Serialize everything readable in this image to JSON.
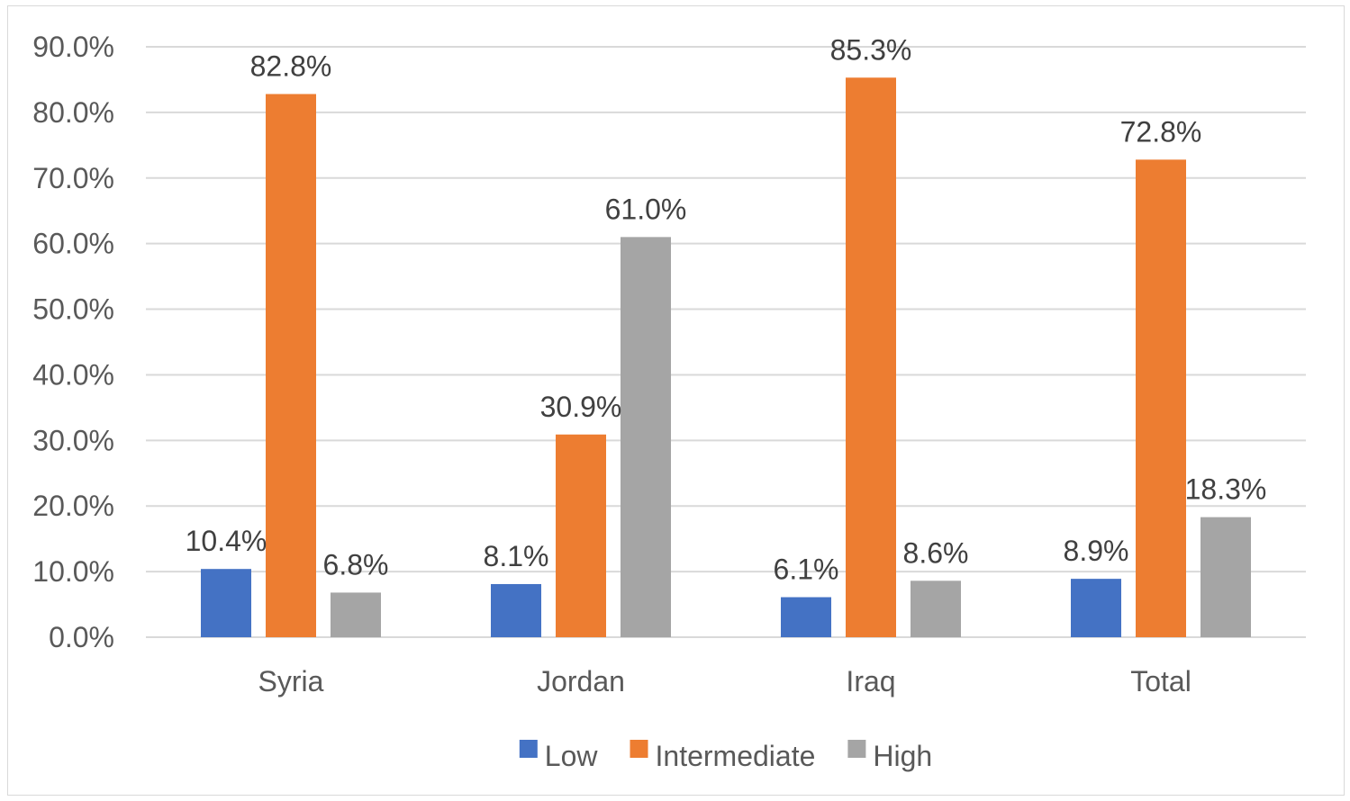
{
  "chart_data": {
    "type": "bar",
    "categories": [
      "Syria",
      "Jordan",
      "Iraq",
      "Total"
    ],
    "series": [
      {
        "name": "Low",
        "values": [
          10.4,
          8.1,
          6.1,
          8.9
        ],
        "color": "#4472c4",
        "labels": [
          "10.4%",
          "8.1%",
          "6.1%",
          "8.9%"
        ]
      },
      {
        "name": "Intermediate",
        "values": [
          82.8,
          30.9,
          85.3,
          72.8
        ],
        "color": "#ed7d31",
        "labels": [
          "82.8%",
          "30.9%",
          "85.3%",
          "72.8%"
        ]
      },
      {
        "name": "High",
        "values": [
          6.8,
          61.0,
          8.6,
          18.3
        ],
        "color": "#a5a5a5",
        "labels": [
          "6.8%",
          "61.0%",
          "8.6%",
          "18.3%"
        ]
      }
    ],
    "yticks": [
      "0.0%",
      "10.0%",
      "20.0%",
      "30.0%",
      "40.0%",
      "50.0%",
      "60.0%",
      "70.0%",
      "80.0%",
      "90.0%"
    ],
    "ylim": [
      0,
      90
    ],
    "grid": true,
    "gridColor": "#d9d9d9",
    "legend_position": "bottom",
    "title": "",
    "xlabel": "",
    "ylabel": ""
  }
}
